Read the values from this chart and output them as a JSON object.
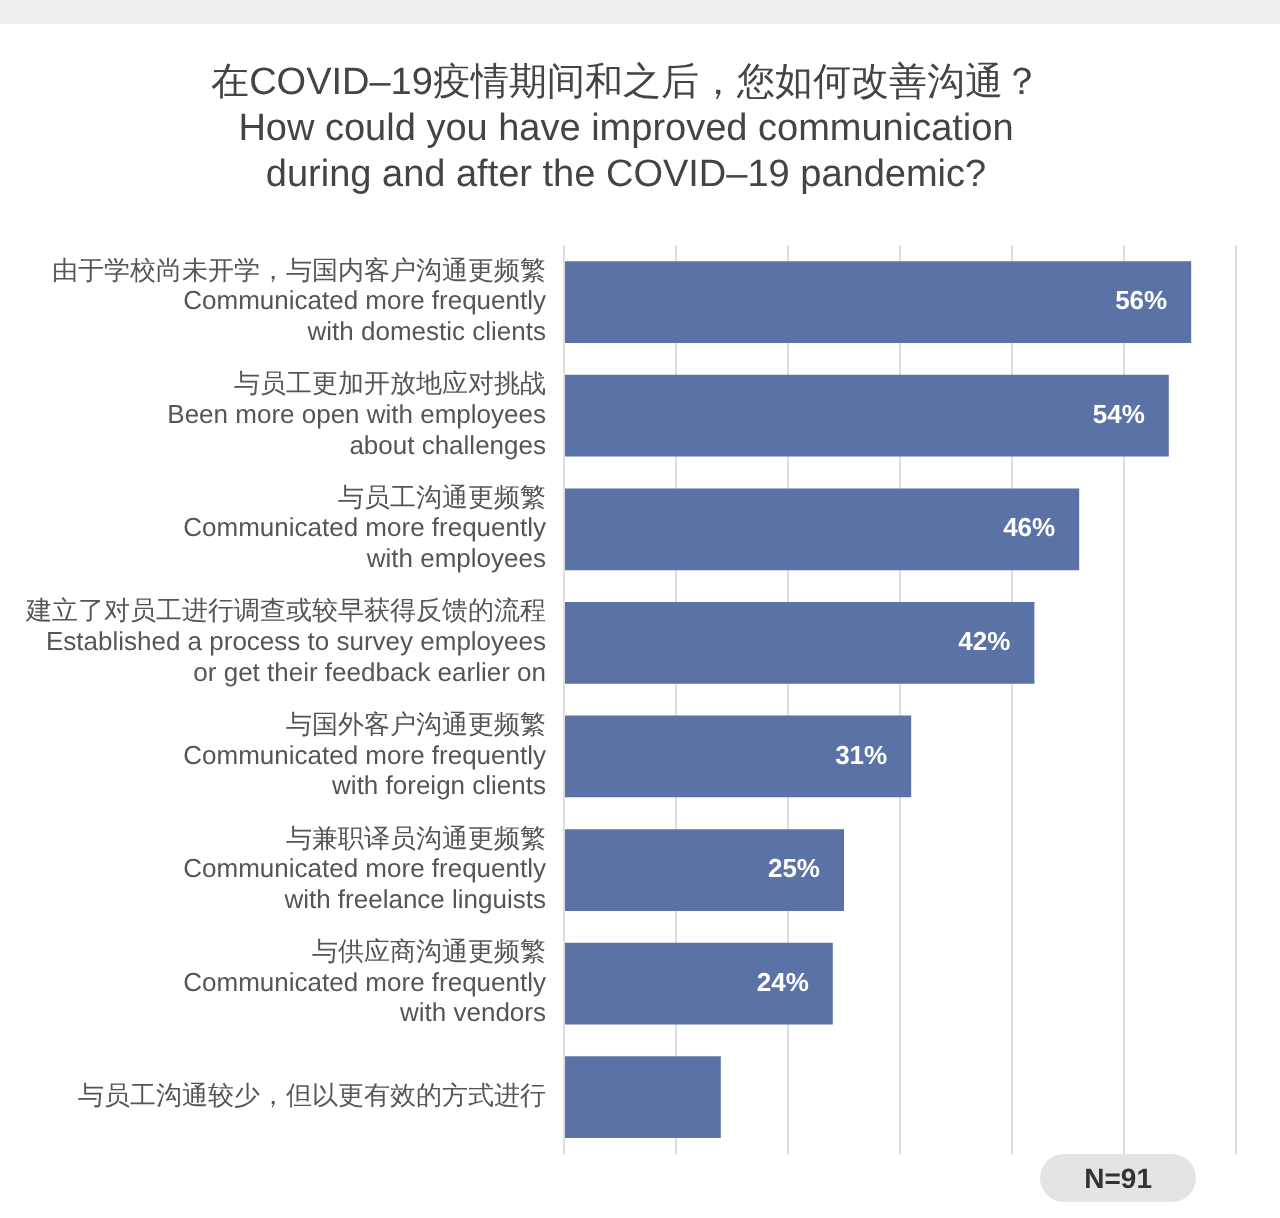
{
  "chart_data": {
    "type": "bar",
    "orientation": "horizontal",
    "title": "在COVID–19疫情期间和之后，您如何改善沟通？\nHow could you have improved communication\nduring and after the COVID–19 pandemic?",
    "categories": [
      "由于学校尚未开学，与国内客户沟通更频繁\nCommunicated more frequently\nwith domestic clients",
      "与员工更加开放地应对挑战\nBeen more open with employees\nabout challenges",
      "与员工沟通更频繁\nCommunicated more frequently\nwith employees",
      "建立了对员工进行调查或较早获得反馈的流程\nEstablished a process to survey employees\nor get their feedback earlier on",
      "与国外客户沟通更频繁\nCommunicated more frequently\nwith foreign clients",
      "与兼职译员沟通更频繁\nCommunicated more frequently\nwith freelance linguists",
      "与供应商沟通更频繁\nCommunicated more frequently\nwith vendors",
      "与员工沟通较少，但以更有效的方式进行"
    ],
    "values": [
      56,
      54,
      46,
      42,
      31,
      25,
      24,
      14
    ],
    "color": "#5b72a6",
    "value_labels": [
      "56%",
      "54%",
      "46%",
      "42%",
      "31%",
      "25%",
      "24%",
      null
    ],
    "xlim": [
      0,
      60
    ],
    "xticks": [
      0,
      10,
      20,
      30,
      40,
      50,
      60
    ],
    "grid": "x",
    "tick_labels": "y",
    "annotations": [
      "N=91"
    ]
  }
}
